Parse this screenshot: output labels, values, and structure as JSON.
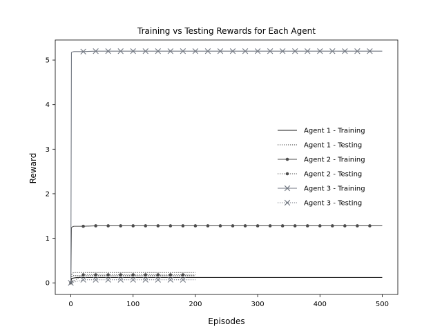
{
  "chart_data": {
    "type": "line",
    "title": "Training vs Testing Rewards for Each Agent",
    "xlabel": "Episodes",
    "ylabel": "Reward",
    "xlim": [
      -25,
      525
    ],
    "ylim": [
      -0.26,
      5.45
    ],
    "xticks": [
      0,
      100,
      200,
      300,
      400,
      500
    ],
    "yticks": [
      0,
      1,
      2,
      3,
      4,
      5
    ],
    "grid": false,
    "legend_position": "center-right",
    "series": [
      {
        "name": "Agent 1 - Training",
        "color": "#1a1a1a",
        "dash": "solid",
        "marker": "none",
        "x": [
          0,
          1,
          2,
          5,
          10,
          20,
          50,
          500
        ],
        "y": [
          0.0,
          0.08,
          0.1,
          0.11,
          0.12,
          0.12,
          0.12,
          0.12
        ]
      },
      {
        "name": "Agent 1 - Testing",
        "color": "#333333",
        "dash": "dotted",
        "marker": "none",
        "x": [
          0,
          1,
          3,
          5,
          200
        ],
        "y": [
          0.0,
          0.13,
          0.16,
          0.16,
          0.16
        ]
      },
      {
        "name": "Agent 1 - Testing",
        "color": "#333333",
        "dash": "dotted",
        "marker": "none",
        "x": [
          0,
          1,
          3,
          5,
          200
        ],
        "y": [
          0.0,
          0.18,
          0.22,
          0.23,
          0.23
        ]
      },
      {
        "name": "Agent 2 - Training",
        "color": "#4d4d4d",
        "dash": "solid",
        "marker": "dot",
        "x": [
          0,
          1,
          2,
          3,
          5,
          10,
          20,
          40,
          60,
          80,
          100,
          120,
          140,
          160,
          180,
          200,
          220,
          240,
          260,
          280,
          300,
          320,
          340,
          360,
          380,
          400,
          420,
          440,
          460,
          480,
          500
        ],
        "y": [
          0.0,
          1.24,
          1.25,
          1.26,
          1.27,
          1.27,
          1.27,
          1.28,
          1.28,
          1.28,
          1.28,
          1.28,
          1.28,
          1.28,
          1.28,
          1.28,
          1.28,
          1.28,
          1.28,
          1.28,
          1.28,
          1.28,
          1.28,
          1.28,
          1.28,
          1.28,
          1.28,
          1.28,
          1.28,
          1.28,
          1.28
        ],
        "marker_x": [
          20,
          40,
          60,
          80,
          100,
          120,
          140,
          160,
          180,
          200,
          220,
          240,
          260,
          280,
          300,
          320,
          340,
          360,
          380,
          400,
          420,
          440,
          460,
          480
        ]
      },
      {
        "name": "Agent 2 - Testing",
        "color": "#4d4d4d",
        "dash": "dotted",
        "marker": "dot",
        "x": [
          0,
          20,
          40,
          60,
          80,
          100,
          120,
          140,
          160,
          180,
          200
        ],
        "y": [
          0.0,
          0.18,
          0.18,
          0.18,
          0.18,
          0.18,
          0.18,
          0.18,
          0.18,
          0.18,
          0.18
        ],
        "marker_x": [
          0,
          20,
          40,
          60,
          80,
          100,
          120,
          140,
          160,
          180
        ]
      },
      {
        "name": "Agent 3 - Training",
        "color": "#707680",
        "dash": "solid",
        "marker": "x",
        "x": [
          0,
          1,
          2,
          5,
          20,
          40,
          60,
          80,
          100,
          120,
          140,
          160,
          180,
          200,
          220,
          240,
          260,
          280,
          300,
          320,
          340,
          360,
          380,
          400,
          420,
          440,
          460,
          480,
          500
        ],
        "y": [
          0.0,
          5.17,
          5.18,
          5.19,
          5.19,
          5.2,
          5.2,
          5.2,
          5.2,
          5.2,
          5.2,
          5.2,
          5.2,
          5.2,
          5.2,
          5.2,
          5.2,
          5.2,
          5.2,
          5.2,
          5.2,
          5.2,
          5.2,
          5.2,
          5.2,
          5.2,
          5.2,
          5.2,
          5.2
        ],
        "marker_x": [
          20,
          40,
          60,
          80,
          100,
          120,
          140,
          160,
          180,
          200,
          220,
          240,
          260,
          280,
          300,
          320,
          340,
          360,
          380,
          400,
          420,
          440,
          460,
          480
        ]
      },
      {
        "name": "Agent 3 - Testing",
        "color": "#707680",
        "dash": "dotted",
        "marker": "x",
        "x": [
          0,
          20,
          40,
          60,
          80,
          100,
          120,
          140,
          160,
          180,
          200
        ],
        "y": [
          0.0,
          0.07,
          0.07,
          0.07,
          0.07,
          0.07,
          0.07,
          0.07,
          0.07,
          0.07,
          0.07
        ],
        "marker_x": [
          0,
          20,
          40,
          60,
          80,
          100,
          120,
          140,
          160,
          180
        ]
      }
    ],
    "legend": [
      {
        "label": "Agent 1 - Training",
        "color": "#1a1a1a",
        "dash": "solid",
        "marker": "none"
      },
      {
        "label": "Agent 1 - Testing",
        "color": "#333333",
        "dash": "dotted",
        "marker": "none"
      },
      {
        "label": "Agent 2 - Training",
        "color": "#4d4d4d",
        "dash": "solid",
        "marker": "dot"
      },
      {
        "label": "Agent 2 - Testing",
        "color": "#4d4d4d",
        "dash": "dotted",
        "marker": "dot"
      },
      {
        "label": "Agent 3 - Training",
        "color": "#707680",
        "dash": "solid",
        "marker": "x"
      },
      {
        "label": "Agent 3 - Testing",
        "color": "#707680",
        "dash": "dotted",
        "marker": "x"
      }
    ]
  }
}
